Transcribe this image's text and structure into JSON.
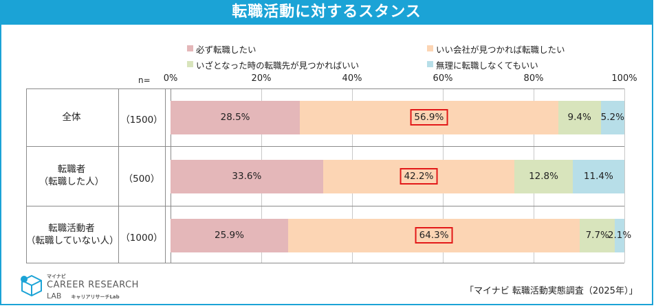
{
  "header": {
    "title": "転職活動に対するスタンス"
  },
  "legend": [
    {
      "label": "必ず転職したい",
      "color": "#e4b7b9"
    },
    {
      "label": "いい会社が見つかれば転職したい",
      "color": "#fcd5b4"
    },
    {
      "label": "いざとなった時の転職先が見つかればいい",
      "color": "#d8e4bc"
    },
    {
      "label": "無理に転職しなくてもいい",
      "color": "#b7dee8"
    }
  ],
  "n_header": "n=",
  "rows": [
    {
      "label": "全体",
      "label2": "",
      "n": "（1500）"
    },
    {
      "label": "転職者",
      "label2": "（転職した人）",
      "n": "（500）"
    },
    {
      "label": "転職活動者",
      "label2": "（転職していない人）",
      "n": "（1000）"
    }
  ],
  "chart_data": {
    "type": "bar",
    "orientation": "horizontal",
    "stacked": true,
    "categories": [
      "全体",
      "転職者（転職した人）",
      "転職活動者（転職していない人）"
    ],
    "series": [
      {
        "name": "必ず転職したい",
        "values": [
          28.5,
          33.6,
          25.9
        ],
        "color": "#e4b7b9"
      },
      {
        "name": "いい会社が見つかれば転職したい",
        "values": [
          56.9,
          42.2,
          64.3
        ],
        "color": "#fcd5b4"
      },
      {
        "name": "いざとなった時の転職先が見つかればいい",
        "values": [
          9.4,
          12.8,
          7.7
        ],
        "color": "#d8e4bc"
      },
      {
        "name": "無理に転職しなくてもいい",
        "values": [
          5.2,
          11.4,
          2.1
        ],
        "color": "#b7dee8"
      }
    ],
    "labels": [
      [
        "28.5%",
        "56.9%",
        "9.4%",
        "5.2%"
      ],
      [
        "33.6%",
        "42.2%",
        "12.8%",
        "11.4%"
      ],
      [
        "25.9%",
        "64.3%",
        "7.7%",
        "2.1%"
      ]
    ],
    "highlighted_series": 1,
    "highlight_color": "#e21818",
    "xlim": [
      0,
      100
    ],
    "ticks": [
      "0%",
      "20%",
      "40%",
      "60%",
      "80%",
      "100%"
    ],
    "tick_values": [
      0,
      20,
      40,
      60,
      80,
      100
    ]
  },
  "logo": {
    "small": "マイナビ",
    "main": "CAREER RESEARCH",
    "sub": "LAB",
    "sub_ja": "キャリアリサーチLab"
  },
  "source": "「マイナビ 転職活動実態調査（2025年）」"
}
